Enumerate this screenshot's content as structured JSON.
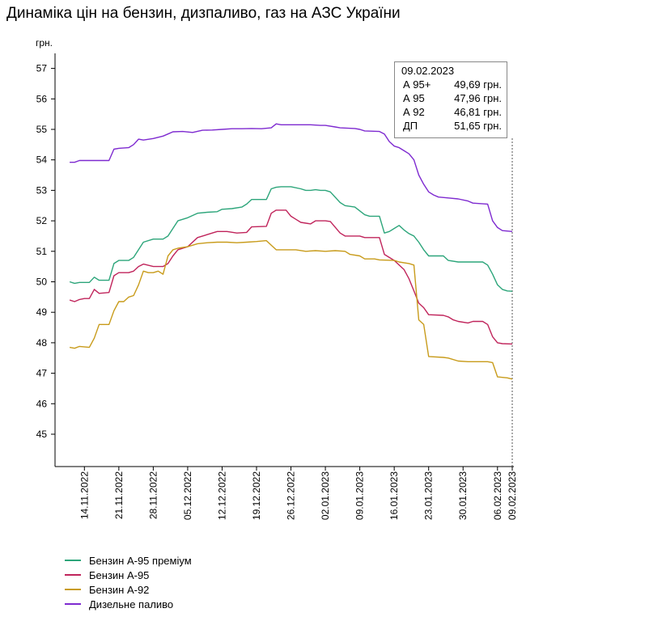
{
  "title": "Динаміка цін на бензин, дизпаливо, газ на АЗС України",
  "chart_data": {
    "type": "line",
    "title": "Динаміка цін на бензин, дизпаливо, газ на АЗС України",
    "ylabel": "грн.",
    "xlabel": "",
    "ylim": [
      44,
      57
    ],
    "xlim": [
      "2022-11-10",
      "2023-02-09"
    ],
    "y_ticks": [
      45,
      46,
      47,
      48,
      49,
      50,
      51,
      52,
      53,
      54,
      55,
      56,
      57
    ],
    "x_ticks": [
      "14.11.2022",
      "21.11.2022",
      "28.11.2022",
      "05.12.2022",
      "12.12.2022",
      "19.12.2022",
      "26.12.2022",
      "02.01.2023",
      "09.01.2023",
      "16.01.2023",
      "23.01.2023",
      "30.01.2023",
      "06.02.2023",
      "09.02.2023"
    ],
    "grid": false,
    "legend_position": "bottom-left",
    "series": [
      {
        "name": "Бензин А-95 преміум",
        "color": "#2ca57a",
        "points": [
          [
            "2022-11-11",
            50.0
          ],
          [
            "2022-11-12",
            49.95
          ],
          [
            "2022-11-13",
            49.98
          ],
          [
            "2022-11-15",
            49.98
          ],
          [
            "2022-11-16",
            50.15
          ],
          [
            "2022-11-17",
            50.05
          ],
          [
            "2022-11-19",
            50.05
          ],
          [
            "2022-11-20",
            50.6
          ],
          [
            "2022-11-21",
            50.7
          ],
          [
            "2022-11-23",
            50.7
          ],
          [
            "2022-11-24",
            50.8
          ],
          [
            "2022-11-26",
            51.3
          ],
          [
            "2022-11-28",
            51.4
          ],
          [
            "2022-11-30",
            51.4
          ],
          [
            "2022-12-01",
            51.5
          ],
          [
            "2022-12-02",
            51.75
          ],
          [
            "2022-12-03",
            52.0
          ],
          [
            "2022-12-05",
            52.1
          ],
          [
            "2022-12-07",
            52.25
          ],
          [
            "2022-12-09",
            52.28
          ],
          [
            "2022-12-11",
            52.3
          ],
          [
            "2022-12-12",
            52.38
          ],
          [
            "2022-12-14",
            52.4
          ],
          [
            "2022-12-16",
            52.45
          ],
          [
            "2022-12-17",
            52.55
          ],
          [
            "2022-12-18",
            52.7
          ],
          [
            "2022-12-21",
            52.7
          ],
          [
            "2022-12-22",
            53.05
          ],
          [
            "2022-12-23",
            53.1
          ],
          [
            "2022-12-24",
            53.12
          ],
          [
            "2022-12-26",
            53.12
          ],
          [
            "2022-12-28",
            53.05
          ],
          [
            "2022-12-29",
            53.0
          ],
          [
            "2022-12-30",
            53.0
          ],
          [
            "2022-12-31",
            53.02
          ],
          [
            "2023-01-01",
            53.0
          ],
          [
            "2023-01-02",
            53.0
          ],
          [
            "2023-01-03",
            52.95
          ],
          [
            "2023-01-05",
            52.6
          ],
          [
            "2023-01-06",
            52.5
          ],
          [
            "2023-01-08",
            52.45
          ],
          [
            "2023-01-10",
            52.2
          ],
          [
            "2023-01-11",
            52.15
          ],
          [
            "2023-01-13",
            52.15
          ],
          [
            "2023-01-14",
            51.6
          ],
          [
            "2023-01-15",
            51.65
          ],
          [
            "2023-01-16",
            51.75
          ],
          [
            "2023-01-17",
            51.85
          ],
          [
            "2023-01-18",
            51.7
          ],
          [
            "2023-01-19",
            51.58
          ],
          [
            "2023-01-20",
            51.5
          ],
          [
            "2023-01-21",
            51.3
          ],
          [
            "2023-01-22",
            51.05
          ],
          [
            "2023-01-23",
            50.85
          ],
          [
            "2023-01-26",
            50.85
          ],
          [
            "2023-01-27",
            50.7
          ],
          [
            "2023-01-29",
            50.65
          ],
          [
            "2023-02-03",
            50.65
          ],
          [
            "2023-02-04",
            50.55
          ],
          [
            "2023-02-05",
            50.25
          ],
          [
            "2023-02-06",
            49.9
          ],
          [
            "2023-02-07",
            49.75
          ],
          [
            "2023-02-08",
            49.7
          ],
          [
            "2023-02-09",
            49.69
          ]
        ]
      },
      {
        "name": "Бензин А-95",
        "color": "#c0245b",
        "points": [
          [
            "2022-11-11",
            49.4
          ],
          [
            "2022-11-12",
            49.35
          ],
          [
            "2022-11-13",
            49.42
          ],
          [
            "2022-11-14",
            49.45
          ],
          [
            "2022-11-15",
            49.45
          ],
          [
            "2022-11-16",
            49.75
          ],
          [
            "2022-11-17",
            49.62
          ],
          [
            "2022-11-19",
            49.65
          ],
          [
            "2022-11-20",
            50.2
          ],
          [
            "2022-11-21",
            50.3
          ],
          [
            "2022-11-23",
            50.3
          ],
          [
            "2022-11-24",
            50.35
          ],
          [
            "2022-11-25",
            50.5
          ],
          [
            "2022-11-26",
            50.58
          ],
          [
            "2022-11-28",
            50.5
          ],
          [
            "2022-11-30",
            50.5
          ],
          [
            "2022-12-01",
            50.6
          ],
          [
            "2022-12-02",
            50.85
          ],
          [
            "2022-12-03",
            51.05
          ],
          [
            "2022-12-05",
            51.15
          ],
          [
            "2022-12-07",
            51.45
          ],
          [
            "2022-12-09",
            51.55
          ],
          [
            "2022-12-11",
            51.65
          ],
          [
            "2022-12-13",
            51.65
          ],
          [
            "2022-12-15",
            51.6
          ],
          [
            "2022-12-17",
            51.62
          ],
          [
            "2022-12-18",
            51.8
          ],
          [
            "2022-12-21",
            51.82
          ],
          [
            "2022-12-22",
            52.25
          ],
          [
            "2022-12-23",
            52.35
          ],
          [
            "2022-12-25",
            52.35
          ],
          [
            "2022-12-26",
            52.15
          ],
          [
            "2022-12-27",
            52.05
          ],
          [
            "2022-12-28",
            51.95
          ],
          [
            "2022-12-30",
            51.9
          ],
          [
            "2022-12-31",
            52.0
          ],
          [
            "2023-01-02",
            52.0
          ],
          [
            "2023-01-03",
            51.98
          ],
          [
            "2023-01-05",
            51.6
          ],
          [
            "2023-01-06",
            51.5
          ],
          [
            "2023-01-09",
            51.5
          ],
          [
            "2023-01-10",
            51.45
          ],
          [
            "2023-01-13",
            51.45
          ],
          [
            "2023-01-14",
            50.9
          ],
          [
            "2023-01-16",
            50.7
          ],
          [
            "2023-01-17",
            50.55
          ],
          [
            "2023-01-18",
            50.4
          ],
          [
            "2023-01-19",
            50.1
          ],
          [
            "2023-01-20",
            49.7
          ],
          [
            "2023-01-21",
            49.3
          ],
          [
            "2023-01-22",
            49.15
          ],
          [
            "2023-01-23",
            48.92
          ],
          [
            "2023-01-26",
            48.9
          ],
          [
            "2023-01-27",
            48.85
          ],
          [
            "2023-01-28",
            48.75
          ],
          [
            "2023-01-29",
            48.7
          ],
          [
            "2023-01-31",
            48.65
          ],
          [
            "2023-02-01",
            48.7
          ],
          [
            "2023-02-03",
            48.7
          ],
          [
            "2023-02-04",
            48.6
          ],
          [
            "2023-02-05",
            48.2
          ],
          [
            "2023-02-06",
            48.0
          ],
          [
            "2023-02-07",
            47.97
          ],
          [
            "2023-02-09",
            47.96
          ]
        ]
      },
      {
        "name": "Бензин А-92",
        "color": "#c89b1a",
        "points": [
          [
            "2022-11-11",
            47.85
          ],
          [
            "2022-11-12",
            47.82
          ],
          [
            "2022-11-13",
            47.88
          ],
          [
            "2022-11-15",
            47.85
          ],
          [
            "2022-11-16",
            48.15
          ],
          [
            "2022-11-17",
            48.6
          ],
          [
            "2022-11-19",
            48.6
          ],
          [
            "2022-11-20",
            49.05
          ],
          [
            "2022-11-21",
            49.35
          ],
          [
            "2022-11-22",
            49.35
          ],
          [
            "2022-11-23",
            49.5
          ],
          [
            "2022-11-24",
            49.55
          ],
          [
            "2022-11-25",
            49.9
          ],
          [
            "2022-11-26",
            50.35
          ],
          [
            "2022-11-27",
            50.3
          ],
          [
            "2022-11-28",
            50.3
          ],
          [
            "2022-11-29",
            50.35
          ],
          [
            "2022-11-30",
            50.25
          ],
          [
            "2022-12-01",
            50.85
          ],
          [
            "2022-12-02",
            51.05
          ],
          [
            "2022-12-03",
            51.1
          ],
          [
            "2022-12-05",
            51.15
          ],
          [
            "2022-12-07",
            51.25
          ],
          [
            "2022-12-09",
            51.28
          ],
          [
            "2022-12-11",
            51.3
          ],
          [
            "2022-12-13",
            51.3
          ],
          [
            "2022-12-15",
            51.28
          ],
          [
            "2022-12-17",
            51.3
          ],
          [
            "2022-12-19",
            51.32
          ],
          [
            "2022-12-21",
            51.35
          ],
          [
            "2022-12-22",
            51.2
          ],
          [
            "2022-12-23",
            51.05
          ],
          [
            "2022-12-25",
            51.05
          ],
          [
            "2022-12-27",
            51.05
          ],
          [
            "2022-12-29",
            51.0
          ],
          [
            "2022-12-31",
            51.02
          ],
          [
            "2023-01-02",
            51.0
          ],
          [
            "2023-01-04",
            51.02
          ],
          [
            "2023-01-06",
            51.0
          ],
          [
            "2023-01-07",
            50.9
          ],
          [
            "2023-01-09",
            50.85
          ],
          [
            "2023-01-10",
            50.75
          ],
          [
            "2023-01-12",
            50.75
          ],
          [
            "2023-01-13",
            50.72
          ],
          [
            "2023-01-16",
            50.7
          ],
          [
            "2023-01-17",
            50.65
          ],
          [
            "2023-01-19",
            50.6
          ],
          [
            "2023-01-20",
            50.55
          ],
          [
            "2023-01-21",
            48.75
          ],
          [
            "2023-01-22",
            48.6
          ],
          [
            "2023-01-23",
            47.55
          ],
          [
            "2023-01-26",
            47.52
          ],
          [
            "2023-01-27",
            47.5
          ],
          [
            "2023-01-29",
            47.4
          ],
          [
            "2023-01-31",
            47.38
          ],
          [
            "2023-02-04",
            47.38
          ],
          [
            "2023-02-05",
            47.35
          ],
          [
            "2023-02-06",
            46.88
          ],
          [
            "2023-02-08",
            46.85
          ],
          [
            "2023-02-09",
            46.81
          ]
        ]
      },
      {
        "name": "Дизельне паливо",
        "color": "#7e2ad0",
        "points": [
          [
            "2022-11-11",
            53.92
          ],
          [
            "2022-11-12",
            53.92
          ],
          [
            "2022-11-13",
            53.98
          ],
          [
            "2022-11-15",
            53.98
          ],
          [
            "2022-11-16",
            53.98
          ],
          [
            "2022-11-17",
            53.98
          ],
          [
            "2022-11-19",
            53.98
          ],
          [
            "2022-11-20",
            54.35
          ],
          [
            "2022-11-21",
            54.38
          ],
          [
            "2022-11-23",
            54.4
          ],
          [
            "2022-11-24",
            54.5
          ],
          [
            "2022-11-25",
            54.68
          ],
          [
            "2022-11-26",
            54.65
          ],
          [
            "2022-11-28",
            54.7
          ],
          [
            "2022-11-30",
            54.78
          ],
          [
            "2022-12-01",
            54.85
          ],
          [
            "2022-12-02",
            54.92
          ],
          [
            "2022-12-04",
            54.93
          ],
          [
            "2022-12-06",
            54.9
          ],
          [
            "2022-12-08",
            54.97
          ],
          [
            "2022-12-10",
            54.98
          ],
          [
            "2022-12-12",
            55.0
          ],
          [
            "2022-12-14",
            55.02
          ],
          [
            "2022-12-16",
            55.02
          ],
          [
            "2022-12-18",
            55.03
          ],
          [
            "2022-12-20",
            55.02
          ],
          [
            "2022-12-22",
            55.05
          ],
          [
            "2022-12-23",
            55.18
          ],
          [
            "2022-12-24",
            55.15
          ],
          [
            "2022-12-26",
            55.15
          ],
          [
            "2022-12-28",
            55.15
          ],
          [
            "2022-12-30",
            55.15
          ],
          [
            "2023-01-01",
            55.13
          ],
          [
            "2023-01-02",
            55.13
          ],
          [
            "2023-01-04",
            55.08
          ],
          [
            "2023-01-05",
            55.05
          ],
          [
            "2023-01-08",
            55.03
          ],
          [
            "2023-01-09",
            55.0
          ],
          [
            "2023-01-10",
            54.95
          ],
          [
            "2023-01-13",
            54.93
          ],
          [
            "2023-01-14",
            54.85
          ],
          [
            "2023-01-15",
            54.6
          ],
          [
            "2023-01-16",
            54.45
          ],
          [
            "2023-01-17",
            54.4
          ],
          [
            "2023-01-18",
            54.3
          ],
          [
            "2023-01-19",
            54.2
          ],
          [
            "2023-01-20",
            54.0
          ],
          [
            "2023-01-21",
            53.5
          ],
          [
            "2023-01-22",
            53.2
          ],
          [
            "2023-01-23",
            52.95
          ],
          [
            "2023-01-24",
            52.85
          ],
          [
            "2023-01-25",
            52.78
          ],
          [
            "2023-01-27",
            52.75
          ],
          [
            "2023-01-29",
            52.72
          ],
          [
            "2023-01-31",
            52.65
          ],
          [
            "2023-02-01",
            52.58
          ],
          [
            "2023-02-04",
            52.55
          ],
          [
            "2023-02-05",
            52.0
          ],
          [
            "2023-02-06",
            51.78
          ],
          [
            "2023-02-07",
            51.68
          ],
          [
            "2023-02-09",
            51.65
          ]
        ]
      }
    ],
    "tooltip": {
      "date": "09.02.2023",
      "rows": [
        {
          "label": "А 95+",
          "value": "49,69 грн."
        },
        {
          "label": "А 95",
          "value": "47,96 грн."
        },
        {
          "label": "А 92",
          "value": "46,81 грн."
        },
        {
          "label": "ДП",
          "value": "51,65 грн."
        }
      ]
    }
  }
}
